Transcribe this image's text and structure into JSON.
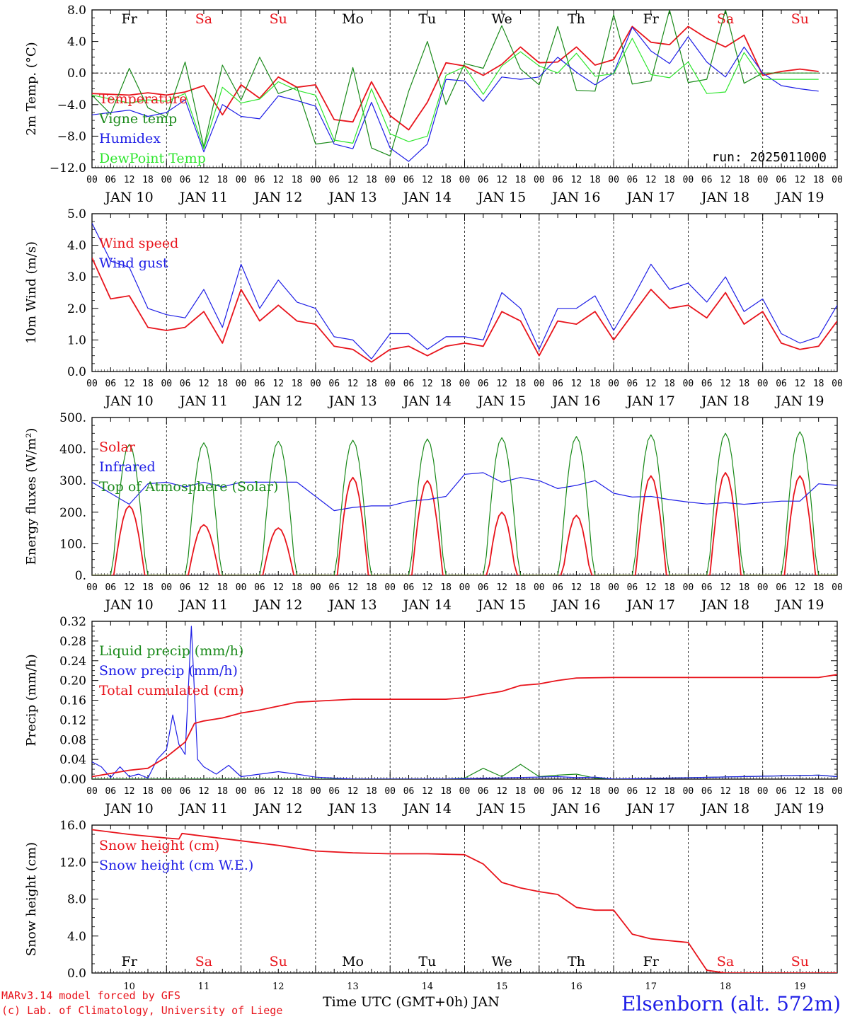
{
  "footer": {
    "model": "MARv3.14 model forced by GFS",
    "copyright": "(c) Lab. of Climatology, University of Liege",
    "xlabel": "Time UTC (GMT+0h) JAN",
    "station": "Elsenborn (alt. 572m)"
  },
  "colors": {
    "red": "#e8141c",
    "green": "#1a8a1a",
    "blue": "#1e1ee6",
    "lightgreen": "#2ee62e",
    "grid": "#000000"
  },
  "days": [
    {
      "dow": "Fr",
      "date": "JAN 10",
      "num": "10",
      "weekend": false
    },
    {
      "dow": "Sa",
      "date": "JAN 11",
      "num": "11",
      "weekend": true
    },
    {
      "dow": "Su",
      "date": "JAN 12",
      "num": "12",
      "weekend": true
    },
    {
      "dow": "Mo",
      "date": "JAN 13",
      "num": "13",
      "weekend": false
    },
    {
      "dow": "Tu",
      "date": "JAN 14",
      "num": "14",
      "weekend": false
    },
    {
      "dow": "We",
      "date": "JAN 15",
      "num": "15",
      "weekend": false
    },
    {
      "dow": "Th",
      "date": "JAN 16",
      "num": "16",
      "weekend": false
    },
    {
      "dow": "Fr",
      "date": "JAN 17",
      "num": "17",
      "weekend": false
    },
    {
      "dow": "Sa",
      "date": "JAN 18",
      "num": "18",
      "weekend": true
    },
    {
      "dow": "Su",
      "date": "JAN 19",
      "num": "19",
      "weekend": true
    }
  ],
  "hour_ticks": [
    "00",
    "06",
    "12",
    "18"
  ],
  "chart_data": [
    {
      "type": "line",
      "ylabel": "2m Temp. (°C)",
      "ylim": [
        -12,
        8
      ],
      "yticks": [
        "8.0",
        "4.0",
        "0.0",
        "−4.0",
        "−8.0",
        "−12.0"
      ],
      "ytick_values": [
        8,
        4,
        0,
        -4,
        -8,
        -12
      ],
      "zero_line": true,
      "annotation": "run: 2025011000",
      "x_hours_from": 0,
      "series": [
        {
          "name": "Temperature",
          "color": "red",
          "x": [
            0,
            12,
            18,
            24,
            30,
            36,
            42,
            48,
            54,
            60,
            66,
            72,
            78,
            84,
            90,
            96,
            102,
            108,
            114,
            120,
            126,
            132,
            138,
            144,
            150,
            156,
            162,
            168,
            174,
            180,
            186,
            192,
            198,
            204,
            210,
            216,
            222,
            228,
            234
          ],
          "y": [
            -2.6,
            -2.8,
            -2.5,
            -2.8,
            -2.4,
            -1.6,
            -5.3,
            -1.5,
            -3.2,
            -0.5,
            -1.8,
            -1.5,
            -5.9,
            -6.2,
            -1.1,
            -5.4,
            -7.2,
            -3.7,
            1.3,
            0.9,
            -0.3,
            1.1,
            3.3,
            1.3,
            1.4,
            3.3,
            1.0,
            1.7,
            5.9,
            3.9,
            3.6,
            5.9,
            4.4,
            3.3,
            4.8,
            -0.3,
            0.2,
            0.5,
            0.2
          ]
        },
        {
          "name": "Vigne temp",
          "color": "green",
          "x": [
            0,
            6,
            12,
            18,
            24,
            30,
            36,
            42,
            48,
            54,
            60,
            66,
            72,
            78,
            84,
            90,
            96,
            102,
            108,
            114,
            120,
            126,
            132,
            138,
            144,
            150,
            156,
            162,
            168,
            174,
            180,
            186,
            192,
            198,
            204,
            210,
            216,
            222,
            228,
            234
          ],
          "y": [
            -2.8,
            -5.2,
            0.6,
            -4.4,
            -5.6,
            1.4,
            -9.4,
            1.0,
            -3.4,
            2.0,
            -2.6,
            -1.8,
            -9.0,
            -8.7,
            0.7,
            -9.5,
            -10.5,
            -2.3,
            4.0,
            -4.0,
            1.2,
            0.6,
            6.0,
            0.5,
            -1.5,
            5.9,
            -2.2,
            -2.3,
            7.4,
            -1.4,
            -1.0,
            8.0,
            -1.2,
            -0.8,
            8.0,
            -1.3,
            0.0,
            0.0,
            0.0,
            0.0
          ]
        },
        {
          "name": "Humidex",
          "color": "blue",
          "x": [
            0,
            12,
            18,
            24,
            30,
            36,
            42,
            48,
            54,
            60,
            66,
            72,
            78,
            84,
            90,
            96,
            102,
            108,
            114,
            120,
            126,
            132,
            138,
            144,
            150,
            156,
            162,
            168,
            174,
            180,
            186,
            192,
            198,
            204,
            210,
            216,
            222,
            228,
            234
          ],
          "y": [
            -5.3,
            -4.7,
            -5.5,
            -5.0,
            -3.4,
            -10.0,
            -4.0,
            -5.5,
            -5.8,
            -2.9,
            -3.5,
            -4.2,
            -9.0,
            -9.6,
            -3.7,
            -9.5,
            -11.2,
            -9.0,
            -0.8,
            -1.0,
            -3.6,
            -0.5,
            -0.8,
            -0.5,
            2.0,
            0.1,
            -1.5,
            0.0,
            5.8,
            2.8,
            1.2,
            4.6,
            1.4,
            -0.5,
            3.3,
            0.0,
            -1.6,
            -2.0,
            -2.3
          ]
        },
        {
          "name": "DewPoint Temp",
          "color": "lightgreen",
          "x": [
            0,
            12,
            18,
            24,
            30,
            36,
            42,
            48,
            54,
            60,
            66,
            72,
            78,
            84,
            90,
            96,
            102,
            108,
            114,
            120,
            126,
            132,
            138,
            144,
            150,
            156,
            162,
            168,
            174,
            180,
            186,
            192,
            198,
            204,
            210,
            216,
            222,
            228,
            234
          ],
          "y": [
            -2.8,
            -3.8,
            -3.4,
            -3.6,
            -2.6,
            -9.6,
            -1.8,
            -3.8,
            -3.3,
            -1.1,
            -2.2,
            -2.8,
            -8.5,
            -8.9,
            -2.0,
            -7.7,
            -8.7,
            -8.0,
            -0.3,
            0.8,
            -2.7,
            0.9,
            2.7,
            0.9,
            0.0,
            2.5,
            -0.4,
            -0.1,
            4.4,
            -0.2,
            -0.6,
            1.4,
            -2.6,
            -2.4,
            2.6,
            -0.8,
            -0.8,
            -0.8,
            -0.8
          ]
        }
      ]
    },
    {
      "type": "line",
      "ylabel": "10m Wind (m/s)",
      "ylim": [
        0,
        5
      ],
      "yticks": [
        "5.0",
        "4.0",
        "3.0",
        "2.0",
        "1.0",
        "0.0"
      ],
      "ytick_values": [
        5,
        4,
        3,
        2,
        1,
        0
      ],
      "series": [
        {
          "name": "Wind speed",
          "color": "red",
          "x": [
            0,
            6,
            12,
            18,
            24,
            30,
            36,
            42,
            48,
            54,
            60,
            66,
            72,
            78,
            84,
            90,
            96,
            102,
            108,
            114,
            120,
            126,
            132,
            138,
            144,
            150,
            156,
            162,
            168,
            174,
            180,
            186,
            192,
            198,
            204,
            210,
            216,
            222,
            228,
            234,
            240
          ],
          "y": [
            3.6,
            2.3,
            2.4,
            1.4,
            1.3,
            1.4,
            1.9,
            0.9,
            2.6,
            1.6,
            2.1,
            1.6,
            1.5,
            0.8,
            0.7,
            0.3,
            0.7,
            0.8,
            0.5,
            0.8,
            0.9,
            0.8,
            1.9,
            1.6,
            0.5,
            1.6,
            1.5,
            1.9,
            1.0,
            1.8,
            2.6,
            2.0,
            2.1,
            1.7,
            2.5,
            1.5,
            1.9,
            0.9,
            0.7,
            0.8,
            1.6
          ]
        },
        {
          "name": "Wind gust",
          "color": "blue",
          "x": [
            0,
            6,
            12,
            18,
            24,
            30,
            36,
            42,
            48,
            54,
            60,
            66,
            72,
            78,
            84,
            90,
            96,
            102,
            108,
            114,
            120,
            126,
            132,
            138,
            144,
            150,
            156,
            162,
            168,
            174,
            180,
            186,
            192,
            198,
            204,
            210,
            216,
            222,
            228,
            234,
            240
          ],
          "y": [
            4.7,
            3.5,
            3.3,
            2.0,
            1.8,
            1.7,
            2.6,
            1.4,
            3.4,
            2.0,
            2.9,
            2.2,
            2.0,
            1.1,
            1.0,
            0.4,
            1.2,
            1.2,
            0.7,
            1.1,
            1.1,
            1.0,
            2.5,
            2.0,
            0.7,
            2.0,
            2.0,
            2.4,
            1.3,
            2.3,
            3.4,
            2.6,
            2.8,
            2.2,
            3.0,
            1.9,
            2.3,
            1.2,
            0.9,
            1.1,
            2.1
          ]
        }
      ]
    },
    {
      "type": "line",
      "ylabel": "Energy fluxes (W/m²)",
      "ylim": [
        0,
        500
      ],
      "yticks": [
        "500.",
        "400.",
        "300.",
        "200.",
        "100.",
        "0."
      ],
      "ytick_values": [
        500,
        400,
        300,
        200,
        100,
        0
      ],
      "series": [
        {
          "name": "Solar",
          "color": "red",
          "peaks": [
            220,
            160,
            150,
            310,
            300,
            200,
            190,
            315,
            325,
            315
          ],
          "width_h": [
            8,
            8,
            8,
            8,
            8,
            7,
            7,
            8,
            8,
            8
          ]
        },
        {
          "name": "Infrared",
          "color": "blue",
          "x": [
            0,
            6,
            12,
            18,
            24,
            30,
            36,
            42,
            48,
            54,
            60,
            66,
            72,
            78,
            84,
            90,
            96,
            102,
            108,
            114,
            120,
            126,
            132,
            138,
            144,
            150,
            156,
            162,
            168,
            174,
            180,
            186,
            192,
            198,
            204,
            210,
            216,
            222,
            228,
            234,
            240
          ],
          "y": [
            295,
            260,
            225,
            290,
            295,
            280,
            295,
            280,
            295,
            295,
            295,
            295,
            250,
            205,
            215,
            220,
            220,
            235,
            240,
            250,
            320,
            325,
            295,
            310,
            300,
            275,
            285,
            300,
            260,
            248,
            250,
            240,
            232,
            226,
            230,
            225,
            230,
            235,
            235,
            290,
            285
          ]
        },
        {
          "name": "Top of Atmosphere (Solar)",
          "color": "green",
          "peaks": [
            415,
            420,
            425,
            428,
            432,
            436,
            440,
            445,
            450,
            455
          ],
          "width_h": [
            9,
            9,
            9,
            9,
            9,
            9,
            9,
            9,
            9,
            9
          ]
        }
      ]
    },
    {
      "type": "line",
      "ylabel": "Precip (mm/h)",
      "ylim": [
        0,
        0.32
      ],
      "yticks": [
        "0.32",
        "0.28",
        "0.24",
        "0.20",
        "0.16",
        "0.12",
        "0.08",
        "0.04",
        "0.00"
      ],
      "ytick_values": [
        0.32,
        0.28,
        0.24,
        0.2,
        0.16,
        0.12,
        0.08,
        0.04,
        0.0
      ],
      "series": [
        {
          "name": "Liquid precip (mm/h)",
          "color": "green",
          "x": [
            0,
            114,
            120,
            126,
            132,
            138,
            144,
            150,
            156,
            162,
            168,
            234,
            240
          ],
          "y": [
            0,
            0,
            0.002,
            0.022,
            0.005,
            0.03,
            0.005,
            0.008,
            0.01,
            0.002,
            0,
            0.008,
            0.005
          ]
        },
        {
          "name": "Snow precip (mm/h)",
          "color": "blue",
          "x": [
            0,
            3,
            6,
            9,
            12,
            15,
            18,
            21,
            24,
            26,
            28,
            30,
            32,
            34,
            36,
            40,
            44,
            48,
            54,
            60,
            66,
            72,
            78,
            84,
            90,
            96,
            102,
            108,
            114,
            150,
            156,
            162,
            168,
            234,
            240
          ],
          "y": [
            0.035,
            0.025,
            0.003,
            0.025,
            0.005,
            0.01,
            0.002,
            0.04,
            0.06,
            0.13,
            0.07,
            0.05,
            0.31,
            0.04,
            0.025,
            0.01,
            0.028,
            0.005,
            0.01,
            0.015,
            0.01,
            0.004,
            0.002,
            0,
            0,
            0,
            0,
            0,
            0,
            0.005,
            0.003,
            0.004,
            0,
            0.008,
            0.005
          ]
        },
        {
          "name": "Total cumulated (cm)",
          "color": "red",
          "x": [
            0,
            12,
            18,
            24,
            30,
            33,
            36,
            42,
            48,
            54,
            60,
            66,
            72,
            78,
            84,
            96,
            108,
            114,
            120,
            126,
            132,
            138,
            144,
            150,
            156,
            168,
            234,
            240
          ],
          "y": [
            0.005,
            0.018,
            0.022,
            0.045,
            0.075,
            0.113,
            0.118,
            0.124,
            0.134,
            0.14,
            0.148,
            0.156,
            0.158,
            0.16,
            0.162,
            0.162,
            0.162,
            0.162,
            0.165,
            0.172,
            0.178,
            0.19,
            0.193,
            0.2,
            0.205,
            0.206,
            0.206,
            0.212
          ]
        }
      ]
    },
    {
      "type": "line",
      "ylabel": "Snow height (cm)",
      "ylim": [
        0,
        16
      ],
      "yticks": [
        "16.0",
        "12.0",
        "8.0",
        "4.0",
        "0.0"
      ],
      "ytick_values": [
        16,
        12,
        8,
        4,
        0
      ],
      "series": [
        {
          "name": "Snow height (cm)",
          "color": "red",
          "x": [
            0,
            12,
            24,
            28,
            29,
            36,
            48,
            60,
            72,
            84,
            96,
            108,
            120,
            126,
            132,
            138,
            144,
            150,
            156,
            162,
            168,
            174,
            180,
            186,
            192,
            198,
            204,
            216,
            228,
            240
          ],
          "y": [
            15.5,
            15.0,
            14.6,
            14.5,
            15.1,
            14.8,
            14.3,
            13.8,
            13.2,
            13.0,
            12.9,
            12.9,
            12.8,
            11.8,
            9.8,
            9.2,
            8.8,
            8.5,
            7.1,
            6.8,
            6.8,
            4.2,
            3.7,
            3.5,
            3.3,
            0.3,
            0.0,
            0.0,
            0.0,
            0.0
          ]
        },
        {
          "name": "Snow height (cm W.E.)",
          "color": "blue",
          "x": [],
          "y": []
        }
      ]
    }
  ]
}
